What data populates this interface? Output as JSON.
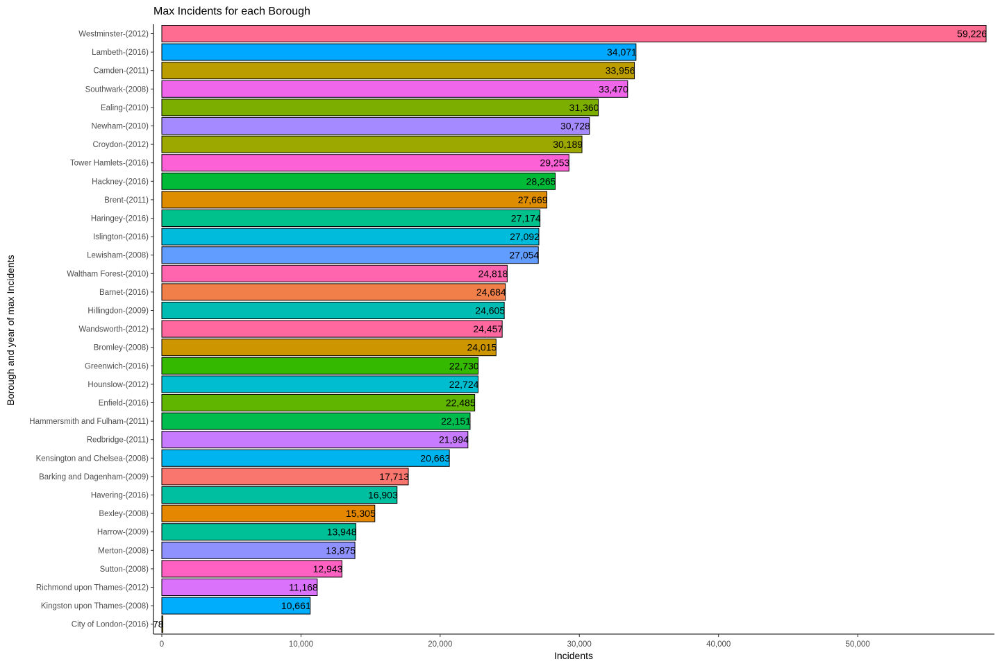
{
  "chart_data": {
    "type": "bar",
    "orientation": "horizontal",
    "title": "Max Incidents for each Borough",
    "xlabel": "Incidents",
    "ylabel": "Borough and year of max Incidents",
    "xlim": [
      0,
      59226
    ],
    "x_ticks": [
      0,
      10000,
      20000,
      30000,
      40000,
      50000
    ],
    "x_tick_labels": [
      "0",
      "10,000",
      "20,000",
      "30,000",
      "40,000",
      "50,000"
    ],
    "grid": false,
    "legend": "none",
    "categories": [
      "Westminster-(2012)",
      "Lambeth-(2016)",
      "Camden-(2011)",
      "Southwark-(2008)",
      "Ealing-(2010)",
      "Newham-(2010)",
      "Croydon-(2012)",
      "Tower Hamlets-(2016)",
      "Hackney-(2016)",
      "Brent-(2011)",
      "Haringey-(2016)",
      "Islington-(2016)",
      "Lewisham-(2008)",
      "Waltham Forest-(2010)",
      "Barnet-(2016)",
      "Hillingdon-(2009)",
      "Wandsworth-(2012)",
      "Bromley-(2008)",
      "Greenwich-(2016)",
      "Hounslow-(2012)",
      "Enfield-(2016)",
      "Hammersmith and Fulham-(2011)",
      "Redbridge-(2011)",
      "Kensington and Chelsea-(2008)",
      "Barking and Dagenham-(2009)",
      "Havering-(2016)",
      "Bexley-(2008)",
      "Harrow-(2009)",
      "Merton-(2008)",
      "Sutton-(2008)",
      "Richmond upon Thames-(2012)",
      "Kingston upon Thames-(2008)",
      "City of London-(2016)"
    ],
    "values": [
      59226,
      34071,
      33956,
      33470,
      31360,
      30728,
      30189,
      29253,
      28265,
      27669,
      27174,
      27092,
      27054,
      24818,
      24684,
      24605,
      24457,
      24015,
      22730,
      22724,
      22485,
      22151,
      21994,
      20663,
      17713,
      16903,
      15305,
      13948,
      13875,
      12943,
      11168,
      10661,
      78
    ],
    "value_labels": [
      "59,226",
      "34,071",
      "33,956",
      "33,470",
      "31,360",
      "30,728",
      "30,189",
      "29,253",
      "28,265",
      "27,669",
      "27,174",
      "27,092",
      "27,054",
      "24,818",
      "24,684",
      "24,605",
      "24,457",
      "24,015",
      "22,730",
      "22,724",
      "22,485",
      "22,151",
      "21,994",
      "20,663",
      "17,713",
      "16,903",
      "15,305",
      "13,948",
      "13,875",
      "12,943",
      "11,168",
      "10,661",
      "78"
    ],
    "colors": [
      "#FF6C91",
      "#00A9FF",
      "#BC9D00",
      "#F066EA",
      "#7CAE00",
      "#A58AFF",
      "#9CA700",
      "#FC61D5",
      "#00BA38",
      "#DE8C00",
      "#00C08B",
      "#00BBDB",
      "#619CFF",
      "#FF65AE",
      "#F07F49",
      "#00BCB3",
      "#FF689F",
      "#CD9600",
      "#35B800",
      "#00BDD0",
      "#5FB500",
      "#00BB4E",
      "#C77CFF",
      "#00B4EF",
      "#F8766D",
      "#00BFA0",
      "#E58700",
      "#00C097",
      "#8F91FF",
      "#FF61C3",
      "#DB72FB",
      "#00ACFC",
      "#B3A000"
    ]
  }
}
